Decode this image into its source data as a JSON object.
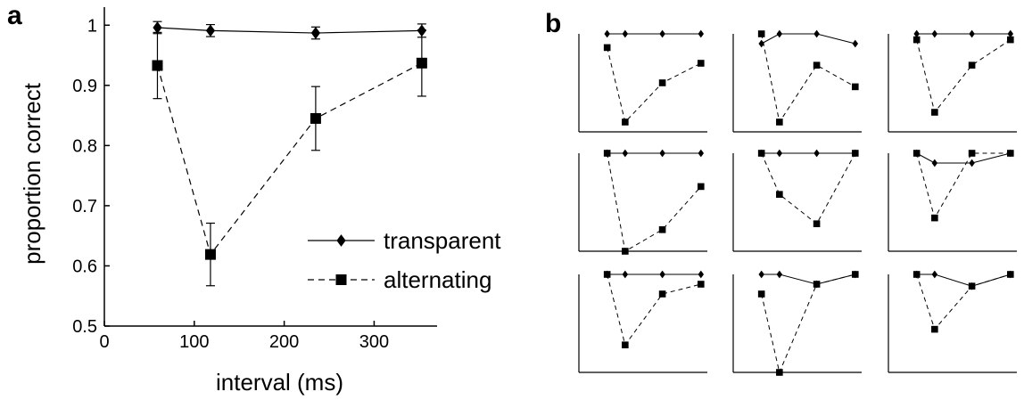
{
  "panel_a": {
    "letter": "a",
    "chart_data": {
      "type": "line",
      "xlabel": "interval (ms)",
      "ylabel": "proportion correct",
      "xlim": [
        0,
        370
      ],
      "ylim": [
        0.5,
        1.03
      ],
      "xticks": [
        0,
        100,
        200,
        300
      ],
      "yticks": [
        0.5,
        0.6,
        0.7,
        0.8,
        0.9,
        1
      ],
      "ytick_labels": [
        "0.5",
        "0.6",
        "0.7",
        "0.8",
        "0.9",
        "1"
      ],
      "legend_position": "right",
      "series": [
        {
          "name": "transparent",
          "marker": "diamond",
          "line": "solid",
          "x": [
            59,
            118,
            235,
            353
          ],
          "y": [
            0.996,
            0.991,
            0.987,
            0.991
          ],
          "err": [
            0.01,
            0.01,
            0.01,
            0.011
          ]
        },
        {
          "name": "alternating",
          "marker": "square",
          "line": "dashed",
          "x": [
            59,
            118,
            235,
            353
          ],
          "y": [
            0.933,
            0.619,
            0.845,
            0.937
          ],
          "err": [
            0.055,
            0.052,
            0.053,
            0.055
          ]
        }
      ]
    }
  },
  "panel_b": {
    "letter": "b",
    "chart_data": [
      {
        "type": "line",
        "ylim": [
          0.5,
          1
        ],
        "x": [
          59,
          118,
          235,
          353
        ],
        "series": [
          {
            "marker": "diamond",
            "line": "solid",
            "y": [
              1,
              1,
              1,
              1
            ]
          },
          {
            "marker": "square",
            "line": "dashed",
            "y": [
              0.93,
              0.55,
              0.75,
              0.85
            ]
          }
        ]
      },
      {
        "type": "line",
        "ylim": [
          0.5,
          1
        ],
        "x": [
          59,
          118,
          235,
          353
        ],
        "series": [
          {
            "marker": "diamond",
            "line": "solid",
            "y": [
              0.95,
              1,
              1,
              0.95
            ]
          },
          {
            "marker": "square",
            "line": "dashed",
            "y": [
              1,
              0.55,
              0.84,
              0.73
            ]
          }
        ]
      },
      {
        "type": "line",
        "ylim": [
          0.5,
          1
        ],
        "x": [
          59,
          118,
          235,
          353
        ],
        "series": [
          {
            "marker": "diamond",
            "line": "solid",
            "y": [
              1,
              1,
              1,
              1
            ]
          },
          {
            "marker": "square",
            "line": "dashed",
            "y": [
              0.97,
              0.6,
              0.84,
              0.97
            ]
          }
        ]
      },
      {
        "type": "line",
        "ylim": [
          0.5,
          1
        ],
        "x": [
          59,
          118,
          235,
          353
        ],
        "series": [
          {
            "marker": "diamond",
            "line": "solid",
            "y": [
              1,
              1,
              1,
              1
            ]
          },
          {
            "marker": "square",
            "line": "dashed",
            "y": [
              1,
              0.5,
              0.61,
              0.83
            ]
          }
        ]
      },
      {
        "type": "line",
        "ylim": [
          0.5,
          1
        ],
        "x": [
          59,
          118,
          235,
          353
        ],
        "series": [
          {
            "marker": "diamond",
            "line": "solid",
            "y": [
              1,
              1,
              1,
              1
            ]
          },
          {
            "marker": "square",
            "line": "dashed",
            "y": [
              1,
              0.79,
              0.64,
              1
            ]
          }
        ]
      },
      {
        "type": "line",
        "ylim": [
          0.5,
          1
        ],
        "x": [
          59,
          118,
          235,
          353
        ],
        "series": [
          {
            "marker": "diamond",
            "line": "solid",
            "y": [
              1,
              0.95,
              0.95,
              1
            ]
          },
          {
            "marker": "square",
            "line": "dashed",
            "y": [
              1,
              0.67,
              1,
              1
            ]
          }
        ]
      },
      {
        "type": "line",
        "ylim": [
          0.5,
          1
        ],
        "x": [
          59,
          118,
          235,
          353
        ],
        "series": [
          {
            "marker": "diamond",
            "line": "solid",
            "y": [
              1,
              1,
              1,
              1
            ]
          },
          {
            "marker": "square",
            "line": "dashed",
            "y": [
              1,
              0.64,
              0.9,
              0.95
            ]
          }
        ]
      },
      {
        "type": "line",
        "ylim": [
          0.5,
          1
        ],
        "x": [
          59,
          118,
          235,
          353
        ],
        "series": [
          {
            "marker": "diamond",
            "line": "solid",
            "y": [
              1,
              1,
              0.95,
              1
            ]
          },
          {
            "marker": "square",
            "line": "dashed",
            "y": [
              0.9,
              0.5,
              0.95,
              1
            ]
          }
        ]
      },
      {
        "type": "line",
        "ylim": [
          0.5,
          1
        ],
        "x": [
          59,
          118,
          235,
          353
        ],
        "series": [
          {
            "marker": "diamond",
            "line": "solid",
            "y": [
              1,
              1,
              0.94,
              1
            ]
          },
          {
            "marker": "square",
            "line": "dashed",
            "y": [
              1,
              0.72,
              0.94,
              1
            ]
          }
        ]
      }
    ]
  }
}
